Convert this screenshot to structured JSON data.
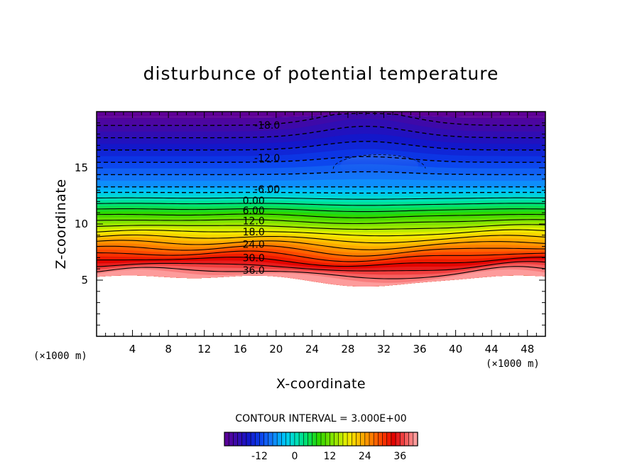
{
  "chart_data": {
    "type": "contour",
    "title": "disturbunce of potential temperature",
    "xlabel": "X-coordinate",
    "ylabel": "Z-coordinate",
    "x_unit": "(×1000 m)",
    "y_unit": "(×1000 m)",
    "xlim": [
      0,
      50
    ],
    "ylim": [
      0,
      20
    ],
    "x_ticks": [
      4,
      8,
      12,
      16,
      20,
      24,
      28,
      32,
      36,
      40,
      44,
      48
    ],
    "y_ticks": [
      5,
      10,
      15
    ],
    "contour_interval_text": "CONTOUR INTERVAL = 3.000E+00",
    "contour_interval": 3.0,
    "value_range": [
      -24,
      42
    ],
    "contour_labels": [
      {
        "text": "-18.0",
        "x": 19,
        "z": 18.8
      },
      {
        "text": "-12.0",
        "x": 19,
        "z": 15.9
      },
      {
        "text": "-6.00",
        "x": 19,
        "z": 13.1
      },
      {
        "text": "0.00",
        "x": 17.5,
        "z": 12.1
      },
      {
        "text": "6.00",
        "x": 17.5,
        "z": 11.2
      },
      {
        "text": "12.0",
        "x": 17.5,
        "z": 10.3
      },
      {
        "text": "18.0",
        "x": 17.5,
        "z": 9.3
      },
      {
        "text": "24.0",
        "x": 17.5,
        "z": 8.2
      },
      {
        "text": "30.0",
        "x": 17.5,
        "z": 7.0
      },
      {
        "text": "36.0",
        "x": 17.5,
        "z": 5.9
      }
    ],
    "colorbar": {
      "ticks": [
        -12,
        0,
        12,
        24,
        36
      ],
      "tick_labels": [
        "-12",
        "0",
        "12",
        "24",
        "36"
      ],
      "min": -24,
      "max": 42
    }
  }
}
